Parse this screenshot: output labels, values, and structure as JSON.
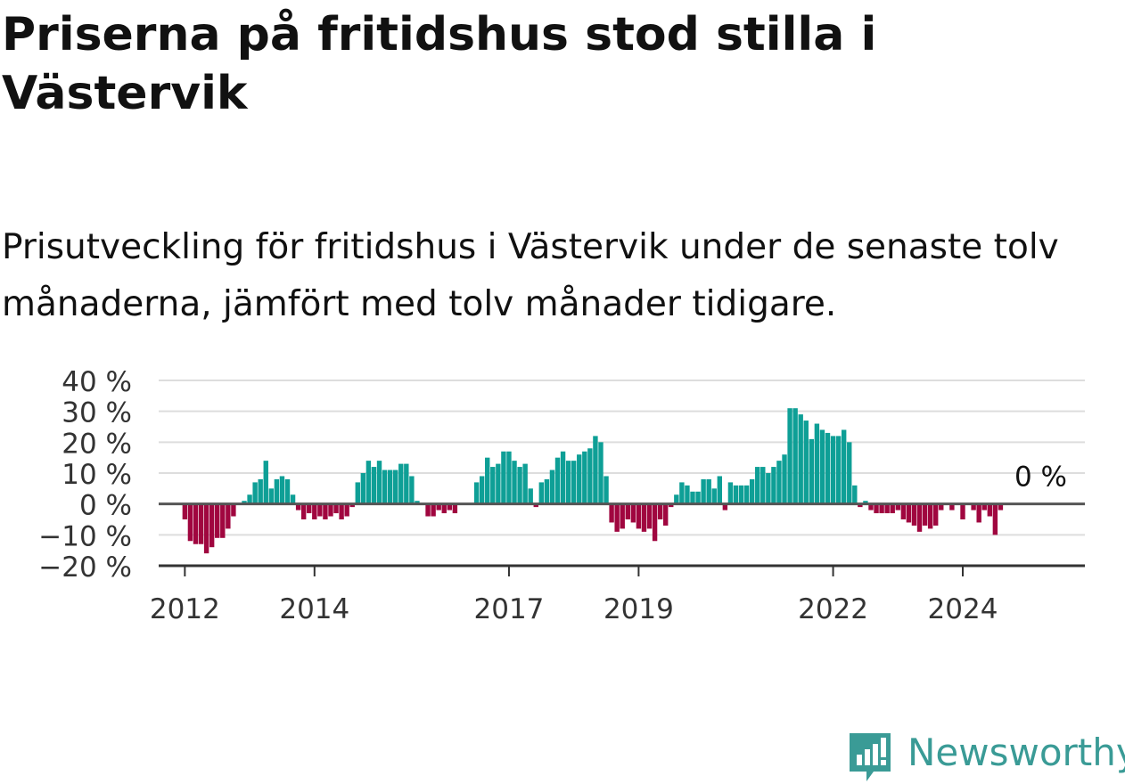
{
  "title": "Priserna på fritidshus stod stilla i Västervik",
  "subtitle": "Prisutveckling för fritidshus i Västervik under de senaste tolv månaderna, jämfört med tolv månader tidigare.",
  "brand": {
    "name": "Newsworthy",
    "icon": "newsworthy-logo-icon",
    "color": "#3a9b96"
  },
  "chart_data": {
    "type": "bar",
    "title": "",
    "xlabel": "",
    "ylabel": "",
    "ylim": [
      -20,
      40
    ],
    "grid": true,
    "legend": "none",
    "colors": {
      "positive": "#0e9f96",
      "negative": "#a0063f",
      "zero_line": "#555555",
      "grid": "#dddddd"
    },
    "x_ticks": [
      "2012",
      "2014",
      "2017",
      "2019",
      "2022",
      "2024"
    ],
    "y_ticks": [
      {
        "value": 40,
        "label": "40 %"
      },
      {
        "value": 30,
        "label": "30 %"
      },
      {
        "value": 20,
        "label": "20 %"
      },
      {
        "value": 10,
        "label": "10 %"
      },
      {
        "value": 0,
        "label": "0 %"
      },
      {
        "value": -10,
        "label": "−10 %"
      },
      {
        "value": -20,
        "label": "−20 %"
      }
    ],
    "annotation": {
      "text": "0 %",
      "value": 0
    },
    "start": "2011-12",
    "values": [
      0,
      -5,
      -12,
      -13,
      -13,
      -16,
      -14,
      -11,
      -11,
      -8,
      -4,
      0,
      1,
      3,
      7,
      8,
      14,
      5,
      8,
      9,
      8,
      3,
      -2,
      -5,
      -3,
      -5,
      -4,
      -5,
      -4,
      -3,
      -5,
      -4,
      -1,
      7,
      10,
      14,
      12,
      14,
      11,
      11,
      11,
      13,
      13,
      9,
      1,
      0,
      -4,
      -4,
      -2,
      -3,
      -2,
      -3,
      0,
      0,
      0,
      7,
      9,
      15,
      12,
      13,
      17,
      17,
      14,
      12,
      13,
      5,
      -1,
      7,
      8,
      11,
      15,
      17,
      14,
      14,
      16,
      17,
      18,
      22,
      20,
      9,
      -6,
      -9,
      -8,
      -5,
      -6,
      -8,
      -9,
      -8,
      -12,
      -5,
      -7,
      -1,
      3,
      7,
      6,
      4,
      4,
      8,
      8,
      5,
      9,
      -2,
      7,
      6,
      6,
      6,
      8,
      12,
      12,
      10,
      12,
      14,
      16,
      31,
      31,
      29,
      27,
      21,
      26,
      24,
      23,
      22,
      22,
      24,
      20,
      6,
      -1,
      1,
      -2,
      -3,
      -3,
      -3,
      -3,
      -2,
      -5,
      -6,
      -7,
      -9,
      -7,
      -8,
      -7,
      -2,
      0,
      -2,
      0,
      -5,
      0,
      -2,
      -6,
      -2,
      -4,
      -10,
      -2
    ]
  }
}
